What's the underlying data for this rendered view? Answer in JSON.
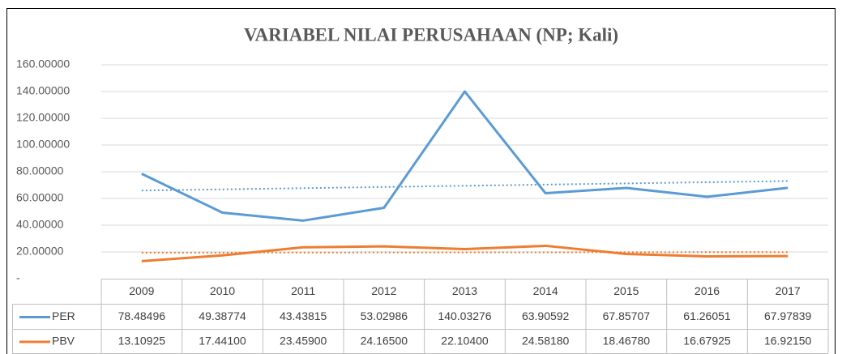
{
  "chart_data": {
    "type": "line",
    "title": "VARIABEL NILAI PERUSAHAAN (NP; Kali)",
    "categories": [
      "2009",
      "2010",
      "2011",
      "2012",
      "2013",
      "2014",
      "2015",
      "2016",
      "2017"
    ],
    "series": [
      {
        "name": "PER",
        "color": "#5b9bd5",
        "values": [
          78.48496,
          49.38774,
          43.43815,
          53.02986,
          140.03276,
          63.90592,
          67.85707,
          61.26051,
          67.97839
        ],
        "value_labels": [
          "78.48496",
          "49.38774",
          "43.43815",
          "53.02986",
          "140.03276",
          "63.90592",
          "67.85707",
          "61.26051",
          "67.97839"
        ]
      },
      {
        "name": "PBV",
        "color": "#ed7d31",
        "values": [
          13.10925,
          17.441,
          23.459,
          24.165,
          22.104,
          24.5818,
          18.4678,
          16.67925,
          16.9215
        ],
        "value_labels": [
          "13.10925",
          "17.44100",
          "23.45900",
          "24.16500",
          "22.10400",
          "24.58180",
          "18.46780",
          "16.67925",
          "16.92150"
        ]
      }
    ],
    "ylim": [
      0,
      160
    ],
    "yticks": [
      {
        "value": 0,
        "label": "-"
      },
      {
        "value": 20,
        "label": "20.00000"
      },
      {
        "value": 40,
        "label": "40.00000"
      },
      {
        "value": 60,
        "label": "60.00000"
      },
      {
        "value": 80,
        "label": "80.00000"
      },
      {
        "value": 100,
        "label": "100.00000"
      },
      {
        "value": 120,
        "label": "120.00000"
      },
      {
        "value": 140,
        "label": "140.00000"
      },
      {
        "value": 160,
        "label": "160.00000"
      }
    ],
    "grid": true,
    "trendline": "linear",
    "data_table": true
  }
}
